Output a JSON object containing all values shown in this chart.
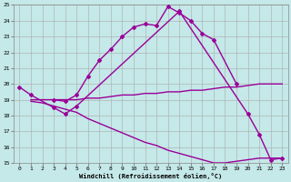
{
  "xlabel": "Windchill (Refroidissement éolien,°C)",
  "background_color": "#c5e8e8",
  "grid_color": "#b0c8c8",
  "line_color": "#990099",
  "xlim": [
    -0.5,
    23.5
  ],
  "ylim": [
    15,
    25
  ],
  "yticks": [
    15,
    16,
    17,
    18,
    19,
    20,
    21,
    22,
    23,
    24,
    25
  ],
  "xticks": [
    0,
    1,
    2,
    3,
    4,
    5,
    6,
    7,
    8,
    9,
    10,
    11,
    12,
    13,
    14,
    15,
    16,
    17,
    18,
    19,
    20,
    21,
    22,
    23
  ],
  "s1_x": [
    0,
    1,
    3,
    4,
    5,
    14,
    20,
    21,
    22,
    23
  ],
  "s1_y": [
    19.8,
    19.3,
    18.5,
    18.1,
    18.6,
    24.6,
    18.1,
    16.8,
    15.2,
    15.3
  ],
  "s2_x": [
    3,
    4,
    5,
    6,
    7,
    8,
    9,
    10,
    11,
    12,
    13,
    14,
    15,
    16,
    17,
    19
  ],
  "s2_y": [
    19.0,
    18.9,
    19.3,
    20.5,
    21.5,
    22.2,
    23.0,
    23.6,
    23.8,
    23.7,
    24.9,
    24.5,
    24.0,
    23.2,
    22.8,
    20.0
  ],
  "s3_x": [
    1,
    2,
    3,
    4,
    5,
    6,
    7,
    8,
    9,
    10,
    11,
    12,
    13,
    14,
    15,
    16,
    17,
    18,
    19,
    20,
    21,
    22,
    23
  ],
  "s3_y": [
    19.0,
    19.0,
    19.0,
    19.0,
    19.0,
    19.1,
    19.1,
    19.2,
    19.3,
    19.3,
    19.4,
    19.4,
    19.5,
    19.5,
    19.6,
    19.6,
    19.7,
    19.8,
    19.8,
    19.9,
    20.0,
    20.0,
    20.0
  ],
  "s4_x": [
    1,
    2,
    3,
    4,
    5,
    6,
    7,
    8,
    9,
    10,
    11,
    12,
    13,
    14,
    15,
    16,
    17,
    18,
    19,
    20,
    21,
    22,
    23
  ],
  "s4_y": [
    18.9,
    18.8,
    18.6,
    18.4,
    18.2,
    17.8,
    17.5,
    17.2,
    16.9,
    16.6,
    16.3,
    16.1,
    15.8,
    15.6,
    15.4,
    15.2,
    15.0,
    15.0,
    15.1,
    15.2,
    15.3,
    15.3,
    15.3
  ]
}
